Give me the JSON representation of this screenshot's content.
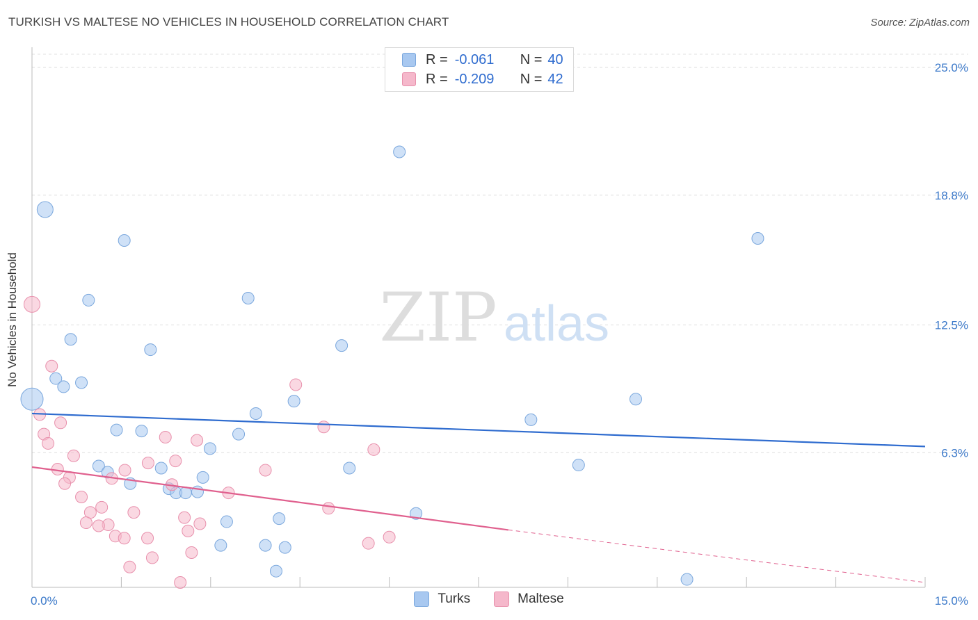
{
  "title": "TURKISH VS MALTESE NO VEHICLES IN HOUSEHOLD CORRELATION CHART",
  "source": "Source: ZipAtlas.com",
  "watermark": {
    "zip": "ZIP",
    "atlas": "atlas"
  },
  "colors": {
    "turks": "#a8c8f0",
    "turks_line": "#2f6ccf",
    "maltese": "#f5b8cb",
    "maltese_line": "#e0608e",
    "grid": "#dddddd",
    "tick_text": "#3a78c9"
  },
  "legend": {
    "turks": {
      "r_label": "R =",
      "r_value": "-0.061",
      "n_label": "N =",
      "n_value": "40"
    },
    "maltese": {
      "r_label": "R =",
      "r_value": "-0.209",
      "n_label": "N =",
      "n_value": "42"
    }
  },
  "chart_data": {
    "type": "scatter",
    "title": "TURKISH VS MALTESE NO VEHICLES IN HOUSEHOLD CORRELATION CHART",
    "xlabel": "",
    "ylabel": "No Vehicles in Household",
    "xlim": [
      0,
      15
    ],
    "ylim": [
      0,
      25
    ],
    "x_tick_labels": [
      "0.0%",
      "15.0%"
    ],
    "y_ticks": [
      6.3,
      12.5,
      18.8,
      25.0
    ],
    "y_tick_labels": [
      "6.3%",
      "12.5%",
      "18.8%",
      "25.0%"
    ],
    "grid": true,
    "series": [
      {
        "name": "Turks",
        "trend": {
          "x": [
            0,
            15
          ],
          "y": [
            8.2,
            6.6
          ]
        },
        "points": [
          {
            "x": 0.0,
            "y": 8.9,
            "s": 3
          },
          {
            "x": 0.22,
            "y": 18.1,
            "s": 2
          },
          {
            "x": 1.55,
            "y": 16.6,
            "s": 1
          },
          {
            "x": 0.95,
            "y": 13.7,
            "s": 1
          },
          {
            "x": 0.65,
            "y": 11.8,
            "s": 1
          },
          {
            "x": 0.4,
            "y": 9.9,
            "s": 1
          },
          {
            "x": 0.53,
            "y": 9.5,
            "s": 1
          },
          {
            "x": 0.83,
            "y": 9.7,
            "s": 1
          },
          {
            "x": 1.99,
            "y": 11.3,
            "s": 1
          },
          {
            "x": 6.17,
            "y": 20.9,
            "s": 1
          },
          {
            "x": 12.19,
            "y": 16.7,
            "s": 1
          },
          {
            "x": 3.63,
            "y": 13.8,
            "s": 1
          },
          {
            "x": 5.2,
            "y": 11.5,
            "s": 1
          },
          {
            "x": 4.4,
            "y": 8.8,
            "s": 1
          },
          {
            "x": 10.14,
            "y": 8.9,
            "s": 1
          },
          {
            "x": 3.76,
            "y": 8.2,
            "s": 1
          },
          {
            "x": 8.38,
            "y": 7.9,
            "s": 1
          },
          {
            "x": 1.42,
            "y": 7.4,
            "s": 1
          },
          {
            "x": 1.84,
            "y": 7.35,
            "s": 1
          },
          {
            "x": 3.47,
            "y": 7.2,
            "s": 1
          },
          {
            "x": 2.99,
            "y": 6.5,
            "s": 1
          },
          {
            "x": 1.12,
            "y": 5.65,
            "s": 1
          },
          {
            "x": 1.27,
            "y": 5.35,
            "s": 1
          },
          {
            "x": 2.17,
            "y": 5.55,
            "s": 1
          },
          {
            "x": 5.33,
            "y": 5.55,
            "s": 1
          },
          {
            "x": 9.18,
            "y": 5.7,
            "s": 1
          },
          {
            "x": 2.87,
            "y": 5.1,
            "s": 1
          },
          {
            "x": 1.65,
            "y": 4.8,
            "s": 1
          },
          {
            "x": 2.3,
            "y": 4.55,
            "s": 1
          },
          {
            "x": 2.42,
            "y": 4.35,
            "s": 1
          },
          {
            "x": 2.58,
            "y": 4.35,
            "s": 1
          },
          {
            "x": 2.78,
            "y": 4.4,
            "s": 1
          },
          {
            "x": 6.45,
            "y": 3.35,
            "s": 1
          },
          {
            "x": 4.15,
            "y": 3.1,
            "s": 1
          },
          {
            "x": 3.27,
            "y": 2.95,
            "s": 1
          },
          {
            "x": 3.17,
            "y": 1.8,
            "s": 1
          },
          {
            "x": 3.92,
            "y": 1.8,
            "s": 1
          },
          {
            "x": 4.25,
            "y": 1.7,
            "s": 1
          },
          {
            "x": 4.1,
            "y": 0.55,
            "s": 1
          },
          {
            "x": 11.0,
            "y": 0.15,
            "s": 1
          }
        ]
      },
      {
        "name": "Maltese",
        "trend": {
          "x": [
            0,
            8.0
          ],
          "y": [
            5.6,
            2.55
          ],
          "dashed_to": {
            "x": 15,
            "y": 0.0
          }
        },
        "points": [
          {
            "x": 0.0,
            "y": 13.5,
            "s": 2
          },
          {
            "x": 0.33,
            "y": 10.5,
            "s": 1
          },
          {
            "x": 0.13,
            "y": 8.15,
            "s": 1
          },
          {
            "x": 0.48,
            "y": 7.75,
            "s": 1
          },
          {
            "x": 0.2,
            "y": 7.2,
            "s": 1
          },
          {
            "x": 0.27,
            "y": 6.75,
            "s": 1
          },
          {
            "x": 4.43,
            "y": 9.6,
            "s": 1
          },
          {
            "x": 4.9,
            "y": 7.55,
            "s": 1
          },
          {
            "x": 2.24,
            "y": 7.05,
            "s": 1
          },
          {
            "x": 2.77,
            "y": 6.9,
            "s": 1
          },
          {
            "x": 5.74,
            "y": 6.45,
            "s": 1
          },
          {
            "x": 0.7,
            "y": 6.15,
            "s": 1
          },
          {
            "x": 2.41,
            "y": 5.9,
            "s": 1
          },
          {
            "x": 1.95,
            "y": 5.8,
            "s": 1
          },
          {
            "x": 0.43,
            "y": 5.5,
            "s": 1
          },
          {
            "x": 1.56,
            "y": 5.45,
            "s": 1
          },
          {
            "x": 3.92,
            "y": 5.45,
            "s": 1
          },
          {
            "x": 0.63,
            "y": 5.1,
            "s": 1
          },
          {
            "x": 1.34,
            "y": 5.05,
            "s": 1
          },
          {
            "x": 0.55,
            "y": 4.8,
            "s": 1
          },
          {
            "x": 2.35,
            "y": 4.75,
            "s": 1
          },
          {
            "x": 3.3,
            "y": 4.35,
            "s": 1
          },
          {
            "x": 0.83,
            "y": 4.15,
            "s": 1
          },
          {
            "x": 1.17,
            "y": 3.65,
            "s": 1
          },
          {
            "x": 4.98,
            "y": 3.6,
            "s": 1
          },
          {
            "x": 0.98,
            "y": 3.4,
            "s": 1
          },
          {
            "x": 1.71,
            "y": 3.4,
            "s": 1
          },
          {
            "x": 2.56,
            "y": 3.15,
            "s": 1
          },
          {
            "x": 0.91,
            "y": 2.9,
            "s": 1
          },
          {
            "x": 2.82,
            "y": 2.85,
            "s": 1
          },
          {
            "x": 1.28,
            "y": 2.8,
            "s": 1
          },
          {
            "x": 1.12,
            "y": 2.75,
            "s": 1
          },
          {
            "x": 2.62,
            "y": 2.5,
            "s": 1
          },
          {
            "x": 1.4,
            "y": 2.25,
            "s": 1
          },
          {
            "x": 1.55,
            "y": 2.15,
            "s": 1
          },
          {
            "x": 1.94,
            "y": 2.15,
            "s": 1
          },
          {
            "x": 6.0,
            "y": 2.2,
            "s": 1
          },
          {
            "x": 5.65,
            "y": 1.9,
            "s": 1
          },
          {
            "x": 2.68,
            "y": 1.45,
            "s": 1
          },
          {
            "x": 2.02,
            "y": 1.2,
            "s": 1
          },
          {
            "x": 1.64,
            "y": 0.75,
            "s": 1
          },
          {
            "x": 2.49,
            "y": 0.0,
            "s": 1
          }
        ]
      }
    ]
  }
}
